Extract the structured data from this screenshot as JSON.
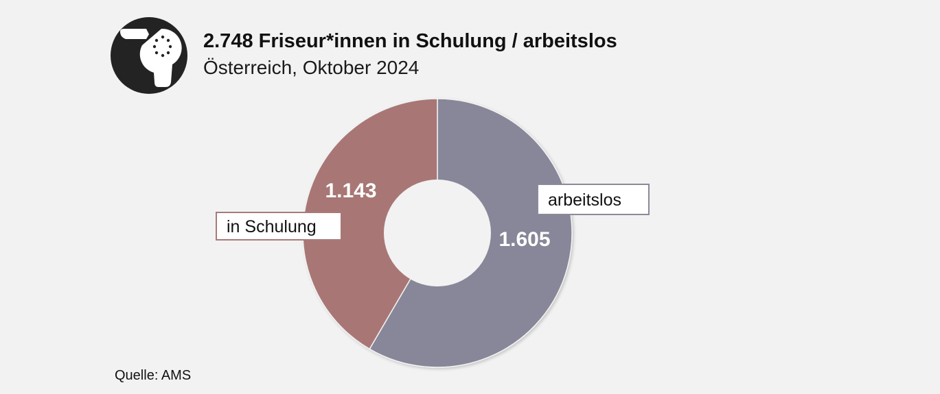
{
  "header": {
    "title": "2.748 Friseur*innen in Schulung / arbeitslos",
    "subtitle": "Österreich, Oktober 2024",
    "icon": "hair-dryer-icon"
  },
  "chart_data": {
    "type": "pie",
    "donut": true,
    "title": "2.748 Friseur*innen in Schulung / arbeitslos",
    "subtitle": "Österreich, Oktober 2024",
    "total_label": "2.748",
    "slices": [
      {
        "name": "arbeitslos",
        "value": 1605,
        "value_label": "1.605",
        "color": "#878799"
      },
      {
        "name": "in Schulung",
        "value": 1143,
        "value_label": "1.143",
        "color": "#a87775"
      }
    ],
    "legend": "callout labels next to slices"
  },
  "footer": {
    "source": "Quelle: AMS"
  }
}
